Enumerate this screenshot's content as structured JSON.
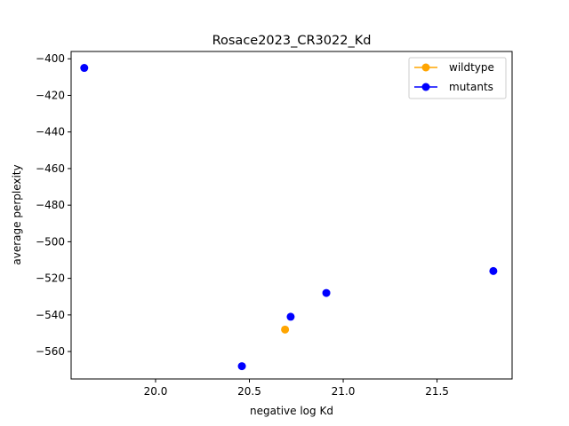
{
  "chart_data": {
    "type": "scatter",
    "title": "Rosace2023_CR3022_Kd",
    "xlabel": "negative log Kd",
    "ylabel": "average perplexity",
    "xlim": [
      19.55,
      21.9
    ],
    "ylim": [
      -575,
      -396
    ],
    "xticks": [
      20.0,
      20.5,
      21.0,
      21.5
    ],
    "xtick_labels": [
      "20.0",
      "20.5",
      "21.0",
      "21.5"
    ],
    "yticks": [
      -400,
      -420,
      -440,
      -460,
      -480,
      -500,
      -520,
      -540,
      -560
    ],
    "ytick_labels": [
      "−400",
      "−420",
      "−440",
      "−460",
      "−480",
      "−500",
      "−520",
      "−540",
      "−560"
    ],
    "grid": false,
    "legend_position": "top-right",
    "series": [
      {
        "name": "wildtype",
        "color": "#ffa500",
        "points": [
          {
            "x": 20.69,
            "y": -548
          }
        ]
      },
      {
        "name": "mutants",
        "color": "#0000ff",
        "points": [
          {
            "x": 19.62,
            "y": -405
          },
          {
            "x": 20.46,
            "y": -568
          },
          {
            "x": 20.72,
            "y": -541
          },
          {
            "x": 20.91,
            "y": -528
          },
          {
            "x": 21.8,
            "y": -516
          }
        ]
      }
    ]
  }
}
